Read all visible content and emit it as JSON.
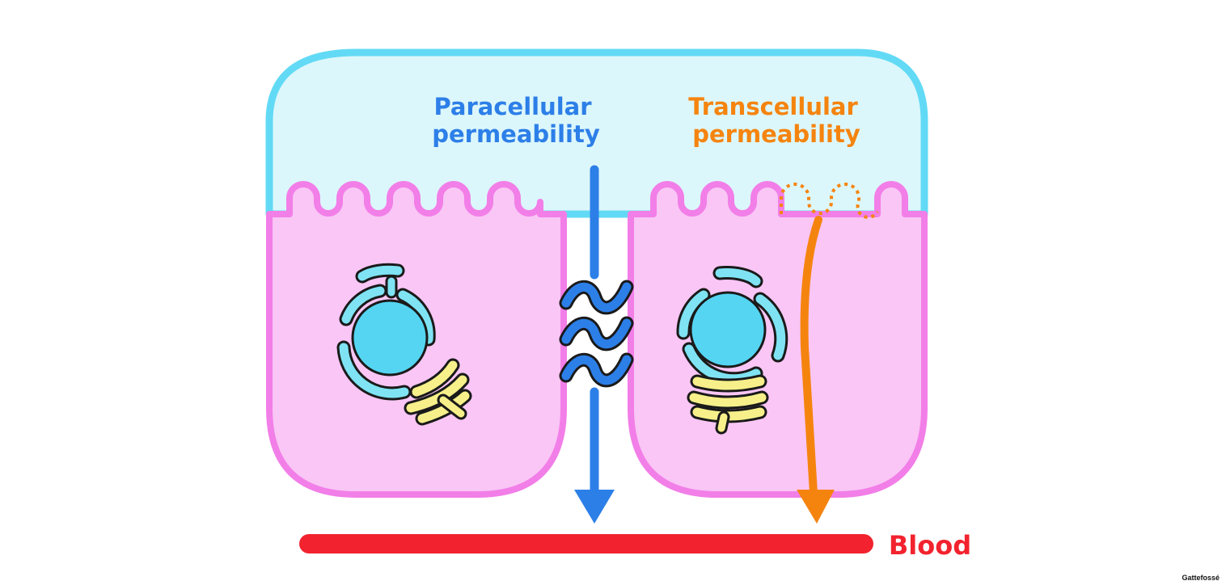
{
  "labels": {
    "paracellular_line1": "Paracellular",
    "paracellular_line2": "permeability",
    "transcellular_line1": "Transcellular",
    "transcellular_line2": "permeability",
    "blood": "Blood"
  },
  "credit": "Gattefossé",
  "colors": {
    "lumen_fill": "#dcf7fb",
    "lumen_border": "#62daf5",
    "cell_fill": "#f9c6f5",
    "cell_border": "#f27ee8",
    "nucleus": "#55d5f2",
    "er_fill": "#7fe3f3",
    "golgi_fill": "#f7f08a",
    "paracellular": "#2d7fe8",
    "transcellular": "#f5840f",
    "blood": "#f2232e"
  }
}
